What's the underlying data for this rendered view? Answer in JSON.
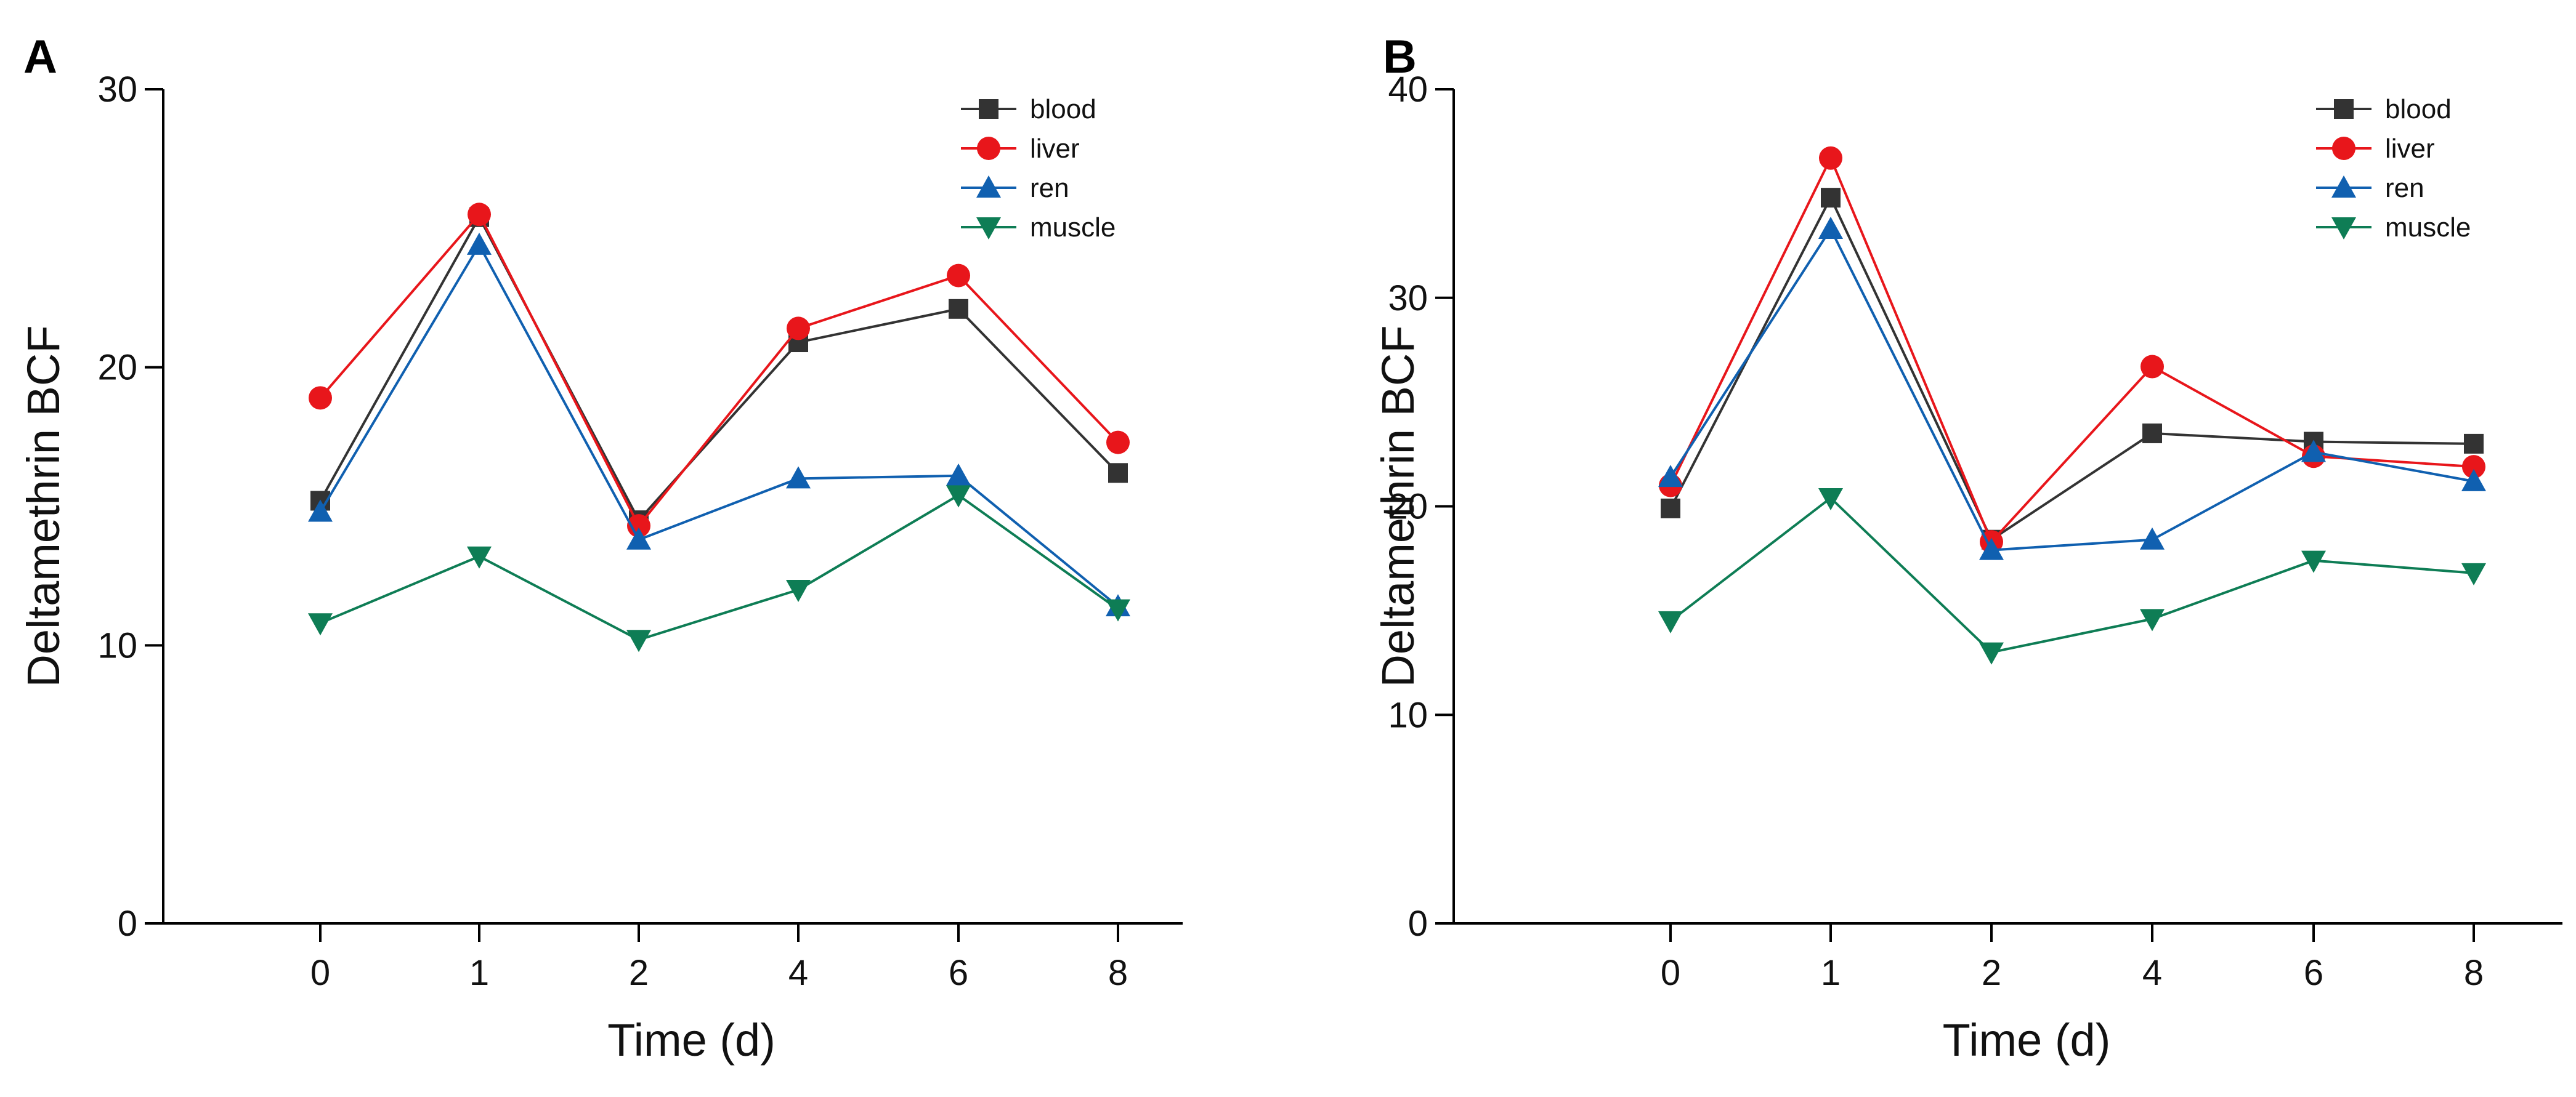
{
  "chart_data": [
    {
      "type": "line",
      "panel_label": "A",
      "title": "",
      "xlabel": "Time (d)",
      "ylabel": "Deltamethrin BCF",
      "categories": [
        "0",
        "1",
        "2",
        "4",
        "6",
        "8"
      ],
      "ylim": [
        0,
        30
      ],
      "yticks": [
        "0",
        "10",
        "20",
        "30"
      ],
      "grid": false,
      "legend_position": "top-right",
      "series": [
        {
          "name": "blood",
          "color": "#333333",
          "marker": "square",
          "values": [
            15.2,
            25.4,
            14.5,
            20.9,
            22.1,
            16.2
          ]
        },
        {
          "name": "liver",
          "color": "#e8161b",
          "marker": "circle",
          "values": [
            18.9,
            25.5,
            14.3,
            21.4,
            23.3,
            17.3
          ]
        },
        {
          "name": "ren",
          "color": "#1060b0",
          "marker": "triangle-up",
          "values": [
            14.8,
            24.4,
            13.8,
            16.0,
            16.1,
            11.4
          ]
        },
        {
          "name": "muscle",
          "color": "#0e7d55",
          "marker": "triangle-down",
          "values": [
            10.8,
            13.2,
            10.2,
            12.0,
            15.4,
            11.3
          ]
        }
      ]
    },
    {
      "type": "line",
      "panel_label": "B",
      "title": "",
      "xlabel": "Time (d)",
      "ylabel": "Deltamethrin BCF",
      "categories": [
        "0",
        "1",
        "2",
        "4",
        "6",
        "8"
      ],
      "ylim": [
        0,
        40
      ],
      "yticks": [
        "0",
        "10",
        "20",
        "30",
        "40"
      ],
      "grid": false,
      "legend_position": "top-right",
      "series": [
        {
          "name": "blood",
          "color": "#333333",
          "marker": "square",
          "values": [
            19.9,
            34.8,
            18.4,
            23.5,
            23.1,
            23.0
          ]
        },
        {
          "name": "liver",
          "color": "#e8161b",
          "marker": "circle",
          "values": [
            21.0,
            36.7,
            18.3,
            26.7,
            22.4,
            21.9
          ]
        },
        {
          "name": "ren",
          "color": "#1060b0",
          "marker": "triangle-up",
          "values": [
            21.4,
            33.3,
            17.9,
            18.4,
            22.6,
            21.2
          ]
        },
        {
          "name": "muscle",
          "color": "#0e7d55",
          "marker": "triangle-down",
          "values": [
            14.5,
            20.4,
            13.0,
            14.6,
            17.4,
            16.8
          ]
        }
      ]
    }
  ]
}
